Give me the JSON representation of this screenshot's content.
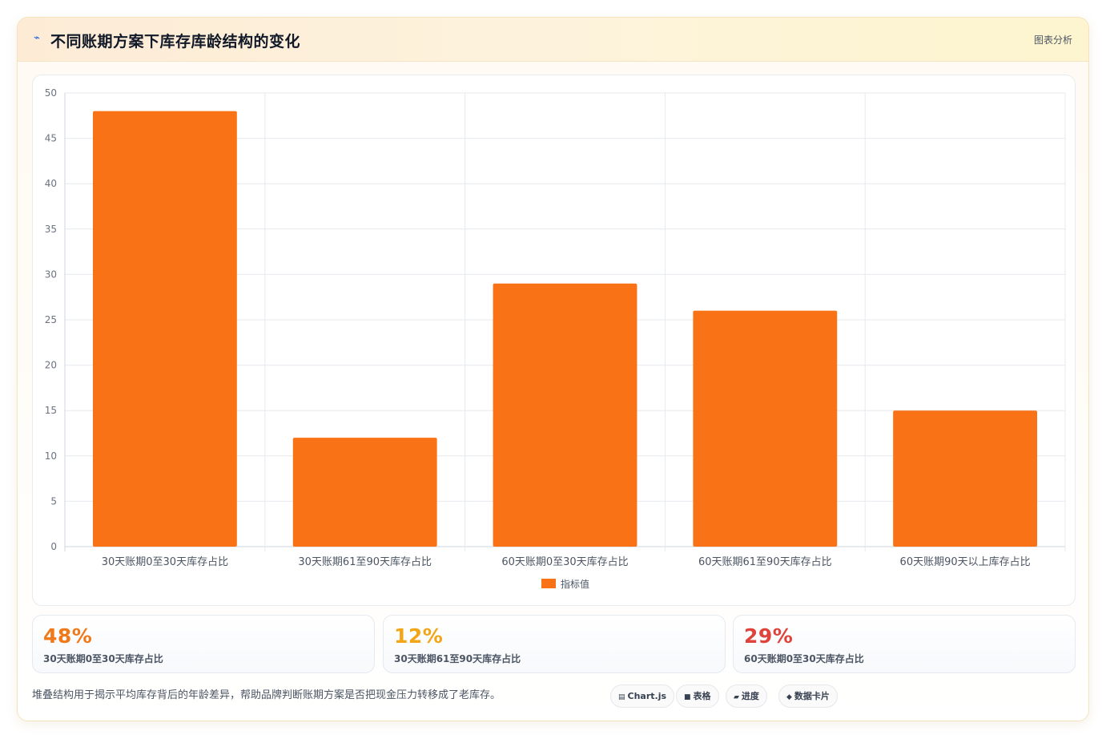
{
  "header": {
    "title": "不同账期方案下库存库龄结构的变化",
    "tag": "图表分析",
    "icon": "lightning-icon"
  },
  "chart_data": {
    "type": "bar",
    "categories": [
      "30天账期0至30天库存占比",
      "30天账期61至90天库存占比",
      "60天账期0至30天库存占比",
      "60天账期61至90天库存占比",
      "60天账期90天以上库存占比"
    ],
    "series": [
      {
        "name": "指标值",
        "values": [
          48,
          12,
          29,
          26,
          15
        ],
        "color": "#f97316"
      }
    ],
    "ylim": [
      0,
      50
    ],
    "yticks": [
      0,
      5,
      10,
      15,
      20,
      25,
      30,
      35,
      40,
      45,
      50
    ],
    "grid": true,
    "legend": "bottom"
  },
  "stats": [
    {
      "value": "48%",
      "label": "30天账期0至30天库存占比",
      "color": "#f07a1a"
    },
    {
      "value": "12%",
      "label": "30天账期61至90天库存占比",
      "color": "#f2a516"
    },
    {
      "value": "29%",
      "label": "60天账期0至30天库存占比",
      "color": "#e0433b"
    }
  ],
  "footer": {
    "note": "堆叠结构用于揭示平均库存背后的年龄差异，帮助品牌判断账期方案是否把现金压力转移成了老库存。",
    "chips": [
      {
        "icon": "chart-icon",
        "glyph": "▤",
        "label": "Chart.js"
      },
      {
        "icon": "table-icon",
        "glyph": "■",
        "label": "表格"
      },
      {
        "icon": "progress-icon",
        "glyph": "▰",
        "label": "进度"
      },
      {
        "icon": "card-icon",
        "glyph": "◆",
        "label": "数据卡片"
      }
    ]
  }
}
